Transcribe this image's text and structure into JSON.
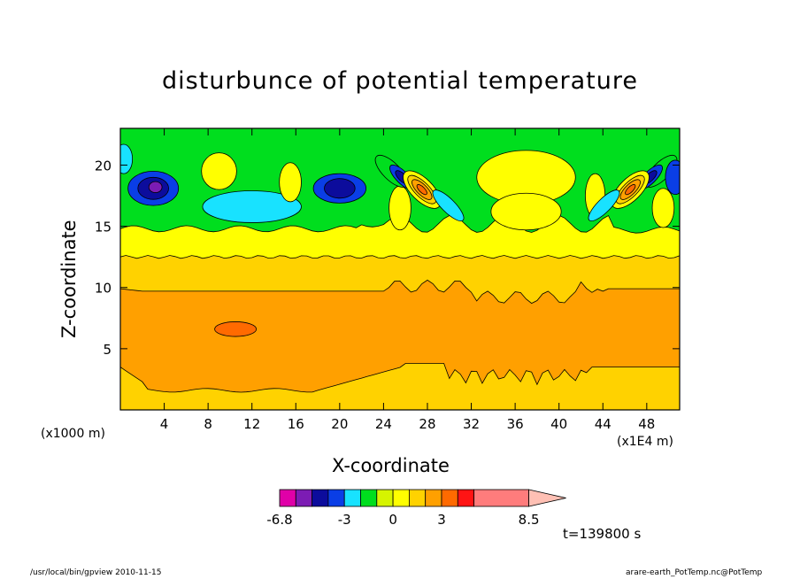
{
  "chart_data": {
    "type": "heatmap",
    "title": "disturbunce of potential temperature",
    "xlabel": "X-coordinate",
    "ylabel": "Z-coordinate",
    "x_units": "(x1E4 m)",
    "y_units": "(x1000 m)",
    "x_ticks": [
      4,
      8,
      12,
      16,
      20,
      24,
      28,
      32,
      36,
      40,
      44,
      48
    ],
    "y_ticks": [
      5,
      10,
      15,
      20
    ],
    "xlim": [
      0,
      51
    ],
    "ylim": [
      0,
      23
    ],
    "colorbar": {
      "labels": [
        "-6.8",
        "-3",
        "0",
        "3",
        "8.5"
      ],
      "label_values": [
        -6.8,
        -3,
        0,
        3,
        8.5
      ],
      "levels": [
        -6.8,
        -6,
        -5,
        -4,
        -3,
        -2,
        -1,
        0,
        1,
        2,
        3,
        4,
        5,
        8.5
      ],
      "colors": [
        "#e000a8",
        "#7c1cb4",
        "#0c0c9c",
        "#0a3ee6",
        "#18e2ff",
        "#00de1e",
        "#d6f400",
        "#ffff00",
        "#ffd200",
        "#ffa000",
        "#ff6a00",
        "#ff1414",
        "#ff7c7c",
        "#ffc0b4"
      ]
    },
    "features": [
      {
        "type": "band",
        "z": [
          0,
          12.5
        ],
        "value": "1 to 2"
      },
      {
        "type": "band",
        "z": [
          1.5,
          10
        ],
        "value": "2 to 3"
      },
      {
        "type": "band",
        "z": [
          12.5,
          15
        ],
        "value": "0 to 1"
      },
      {
        "type": "region",
        "x": [
          0,
          51
        ],
        "z": [
          15,
          23
        ],
        "value": "-2 to 0"
      },
      {
        "type": "cell",
        "x": 3,
        "z": 18,
        "value": -5
      },
      {
        "type": "cell",
        "x": 12,
        "z": 16.5,
        "value": -3
      },
      {
        "type": "cell",
        "x": 20,
        "z": 18,
        "value": -4
      },
      {
        "type": "cell",
        "x": 10.5,
        "z": 6.5,
        "value": 3
      },
      {
        "type": "cell",
        "x": 27.5,
        "z": 18,
        "value": 5
      },
      {
        "type": "cell",
        "x": 46.5,
        "z": 18,
        "value": 5
      }
    ],
    "time_label": "t=139800 s",
    "footer_left": "/usr/local/bin/gpview  2010-11-15",
    "footer_right": "arare-earth_PotTemp.nc@PotTemp"
  }
}
